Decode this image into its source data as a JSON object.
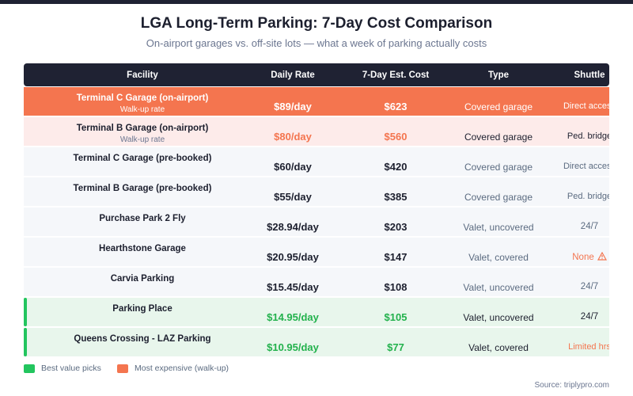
{
  "header": {
    "title": "LGA Long-Term Parking: 7-Day Cost Comparison",
    "subtitle": "On-airport garages vs. off-site lots — what a week of parking actually costs"
  },
  "table": {
    "columns": [
      "Facility",
      "Daily Rate",
      "7-Day Est. Cost",
      "Type",
      "Shuttle"
    ],
    "rows": [
      {
        "facility": "Terminal C Garage (on-airport)",
        "note": "Walk-up rate",
        "rate": "$89/day",
        "cost": "$623",
        "type": "Covered garage",
        "shuttle": "Direct access",
        "highlight": "expensive"
      },
      {
        "facility": "Terminal B Garage (on-airport)",
        "note": "Walk-up rate",
        "rate": "$80/day",
        "cost": "$560",
        "type": "Covered garage",
        "shuttle": "Ped. bridge",
        "highlight": "expensive-light"
      },
      {
        "facility": "Terminal C Garage (pre-booked)",
        "rate": "$60/day",
        "cost": "$420",
        "type": "Covered garage",
        "shuttle": "Direct access"
      },
      {
        "facility": "Terminal B Garage (pre-booked)",
        "rate": "$55/day",
        "cost": "$385",
        "type": "Covered garage",
        "shuttle": "Ped. bridge"
      },
      {
        "facility": "Purchase Park 2 Fly",
        "rate": "$28.94/day",
        "cost": "$203",
        "type": "Valet, uncovered",
        "shuttle": "24/7"
      },
      {
        "facility": "Hearthstone Garage",
        "rate": "$20.95/day",
        "cost": "$147",
        "type": "Valet, covered",
        "shuttle": "None",
        "warning": true
      },
      {
        "facility": "Carvia Parking",
        "rate": "$15.45/day",
        "cost": "$108",
        "type": "Valet, uncovered",
        "shuttle": "24/7"
      },
      {
        "facility": "Parking Place",
        "rate": "$14.95/day",
        "cost": "$105",
        "type": "Valet, uncovered",
        "shuttle": "24/7",
        "highlight": "best"
      },
      {
        "facility": "Queens Crossing - LAZ Parking",
        "rate": "$10.95/day",
        "cost": "$77",
        "type": "Valet, covered",
        "shuttle": "Limited hrs",
        "highlight": "best"
      }
    ]
  },
  "legend": [
    {
      "label": "Best value picks",
      "color": "#22c55e"
    },
    {
      "label": "Most expensive (walk-up)",
      "color": "#f4754f"
    }
  ],
  "source": "Source: triplypro.com"
}
